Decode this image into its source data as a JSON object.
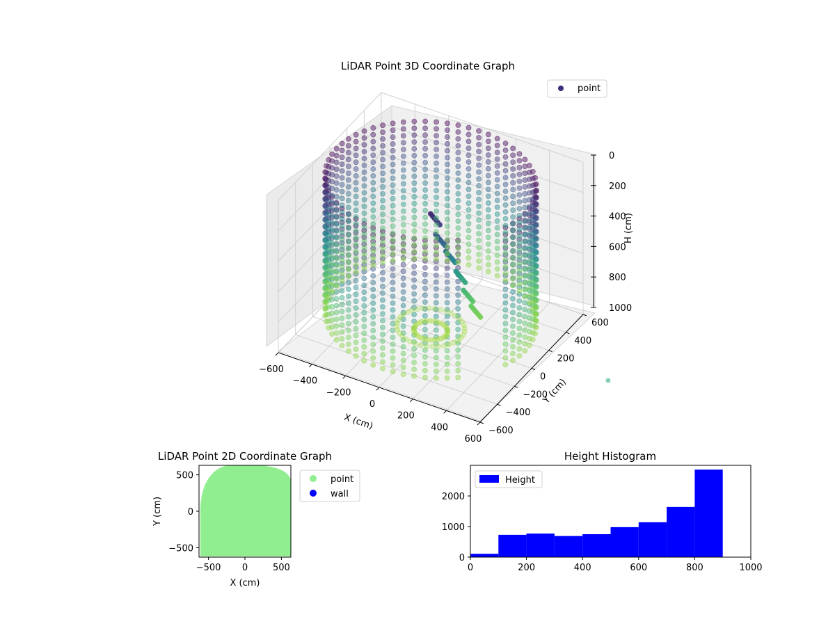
{
  "chart_data": [
    {
      "type": "scatter",
      "title": "LiDAR Point 3D Coordinate Graph",
      "xlabel": "X (cm)",
      "ylabel": "Y (cm)",
      "zlabel": "H (cm)",
      "xlim": [
        -600,
        600
      ],
      "ylim": [
        -600,
        600
      ],
      "zlim": [
        0,
        1000
      ],
      "z_inverted": true,
      "x_ticks": [
        "−600",
        "−400",
        "−200",
        "0",
        "200",
        "400",
        "600"
      ],
      "y_ticks": [
        "−600",
        "−400",
        "−200",
        "0",
        "200",
        "400",
        "600"
      ],
      "z_ticks": [
        "0",
        "200",
        "400",
        "600",
        "800",
        "1000"
      ],
      "colormap": "viridis",
      "grid": true,
      "legend": {
        "placement": "top-right",
        "entries": [
          {
            "name": "point",
            "color": "#3b2f7e"
          }
        ]
      },
      "shape_description": "cylindrical wall of points, radius about 600 cm, heights 0 to 1000 cm, with an interior column of darker points"
    },
    {
      "type": "scatter",
      "title": "LiDAR Point 2D Coordinate Graph",
      "xlabel": "X (cm)",
      "ylabel": "Y (cm)",
      "xlim": [
        -630,
        630
      ],
      "ylim": [
        -630,
        630
      ],
      "x_ticks": [
        "−500",
        "0",
        "500"
      ],
      "y_ticks": [
        "−500",
        "0",
        "500"
      ],
      "grid": false,
      "legend": {
        "placement": "outside-right",
        "entries": [
          {
            "name": "point",
            "color": "#90ee90"
          },
          {
            "name": "wall",
            "color": "#0000ff"
          }
        ]
      }
    },
    {
      "type": "bar",
      "title": "Height Histogram",
      "xlabel": "",
      "ylabel": "",
      "xlim": [
        0,
        1000
      ],
      "ylim": [
        0,
        3000
      ],
      "x_ticks": [
        "0",
        "200",
        "400",
        "600",
        "800",
        "1000"
      ],
      "y_ticks": [
        "0",
        "1000",
        "2000"
      ],
      "bin_edges": [
        0,
        100,
        200,
        300,
        400,
        500,
        600,
        700,
        800,
        900
      ],
      "values": [
        110,
        730,
        770,
        690,
        750,
        980,
        1140,
        1640,
        2860
      ],
      "color": "#0000ff",
      "legend": {
        "placement": "top-left",
        "entries": [
          {
            "name": "Height",
            "color": "#0000ff"
          }
        ]
      }
    }
  ]
}
